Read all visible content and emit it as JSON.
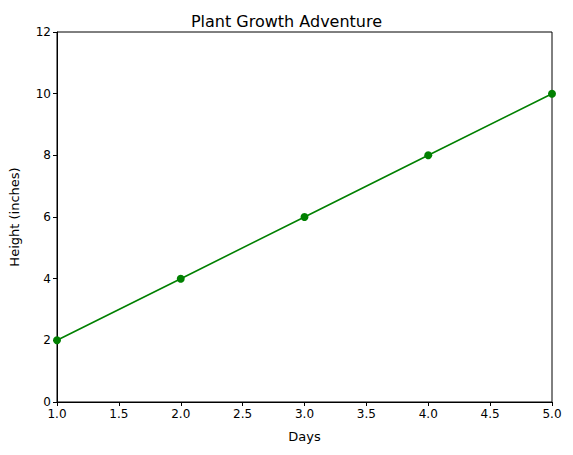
{
  "chart_data": {
    "type": "line",
    "title": "Plant Growth Adventure",
    "x_label": "Days",
    "y_label": "Height (inches)",
    "x": [
      1,
      2,
      3,
      4,
      5
    ],
    "values": [
      2,
      4,
      6,
      8,
      10
    ],
    "color": "#008000",
    "marker": "circle",
    "line_style": "solid",
    "xlim": [
      1,
      5
    ],
    "xticks": [
      {
        "value": 1,
        "label": "1.0"
      },
      {
        "value": 1.5,
        "label": "1.5"
      },
      {
        "value": 2,
        "label": "2.0"
      },
      {
        "value": 2.5,
        "label": "2.5"
      },
      {
        "value": 3,
        "label": "3.0"
      },
      {
        "value": 3.5,
        "label": "3.5"
      },
      {
        "value": 4,
        "label": "4.0"
      },
      {
        "value": 4.5,
        "label": "4.5"
      },
      {
        "value": 5,
        "label": "5.0"
      }
    ],
    "ylim": [
      0,
      12
    ],
    "yticks": [
      0,
      2,
      4,
      6,
      8,
      10,
      12
    ],
    "grid": false
  }
}
